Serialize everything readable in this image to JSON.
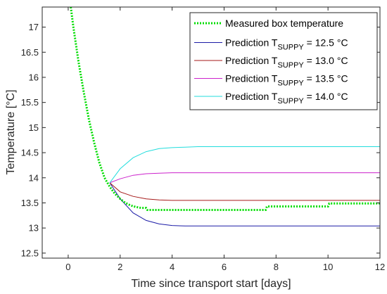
{
  "chart_data": {
    "type": "line",
    "title": "",
    "xlabel": "Time since transport start [days]",
    "ylabel": "Temperature [°C]",
    "xlim": [
      -1,
      12
    ],
    "ylim": [
      12.4,
      17.4
    ],
    "xticks": [
      0,
      2,
      4,
      6,
      8,
      10,
      12
    ],
    "yticks": [
      12.5,
      13,
      13.5,
      14,
      14.5,
      15,
      15.5,
      16,
      16.5,
      17
    ],
    "grid": false,
    "legend_position": "top-right",
    "series": [
      {
        "name": "Measured box temperature",
        "legend_main": "Measured box temperature",
        "color": "#00dd00",
        "style": "dotted",
        "x": [
          0.1,
          0.2,
          0.4,
          0.6,
          0.8,
          1.0,
          1.2,
          1.4,
          1.6,
          1.8,
          2.0,
          2.2,
          2.4,
          2.6,
          2.8,
          3.0,
          3.05,
          3.5,
          4.0,
          5.0,
          6.0,
          7.0,
          7.6,
          7.65,
          8.0,
          9.0,
          10.0,
          10.05,
          11.0,
          12.0
        ],
        "y": [
          17.4,
          17.0,
          16.3,
          15.7,
          15.15,
          14.7,
          14.3,
          14.0,
          13.82,
          13.68,
          13.58,
          13.5,
          13.45,
          13.42,
          13.4,
          13.4,
          13.36,
          13.36,
          13.36,
          13.36,
          13.36,
          13.36,
          13.36,
          13.43,
          13.43,
          13.43,
          13.43,
          13.49,
          13.49,
          13.49
        ]
      },
      {
        "name": "Prediction T_SUPPY = 12.5 °C",
        "legend_main": "Prediction T",
        "legend_sub": "SUPPY",
        "legend_tail": " = 12.5 °C",
        "color": "#1a1aa6",
        "style": "solid",
        "x": [
          1.6,
          2.0,
          2.5,
          3.0,
          3.5,
          4.0,
          4.5,
          5.0,
          6.0,
          8.0,
          12.0
        ],
        "y": [
          13.9,
          13.58,
          13.3,
          13.15,
          13.08,
          13.05,
          13.04,
          13.04,
          13.04,
          13.04,
          13.04
        ]
      },
      {
        "name": "Prediction T_SUPPY = 13.0 °C",
        "legend_main": "Prediction T",
        "legend_sub": "SUPPY",
        "legend_tail": " = 13.0 °C",
        "color": "#a61a1a",
        "style": "solid",
        "x": [
          1.6,
          2.0,
          2.5,
          3.0,
          3.5,
          4.0,
          5.0,
          6.0,
          12.0
        ],
        "y": [
          13.9,
          13.72,
          13.63,
          13.58,
          13.56,
          13.55,
          13.55,
          13.55,
          13.55
        ]
      },
      {
        "name": "Prediction T_SUPPY = 13.5 °C",
        "legend_main": "Prediction T",
        "legend_sub": "SUPPY",
        "legend_tail": " = 13.5 °C",
        "color": "#cc22cc",
        "style": "solid",
        "x": [
          1.6,
          2.0,
          2.5,
          3.0,
          3.5,
          4.0,
          5.0,
          6.0,
          12.0
        ],
        "y": [
          13.9,
          13.98,
          14.05,
          14.08,
          14.09,
          14.1,
          14.1,
          14.1,
          14.1
        ]
      },
      {
        "name": "Prediction T_SUPPY = 14.0 °C",
        "legend_main": "Prediction T",
        "legend_sub": "SUPPY",
        "legend_tail": " = 14.0 °C",
        "color": "#22dddd",
        "style": "solid",
        "x": [
          1.6,
          2.0,
          2.5,
          3.0,
          3.5,
          4.0,
          4.5,
          5.0,
          6.0,
          8.0,
          12.0
        ],
        "y": [
          13.9,
          14.18,
          14.4,
          14.52,
          14.58,
          14.6,
          14.61,
          14.62,
          14.62,
          14.62,
          14.62
        ]
      }
    ]
  }
}
